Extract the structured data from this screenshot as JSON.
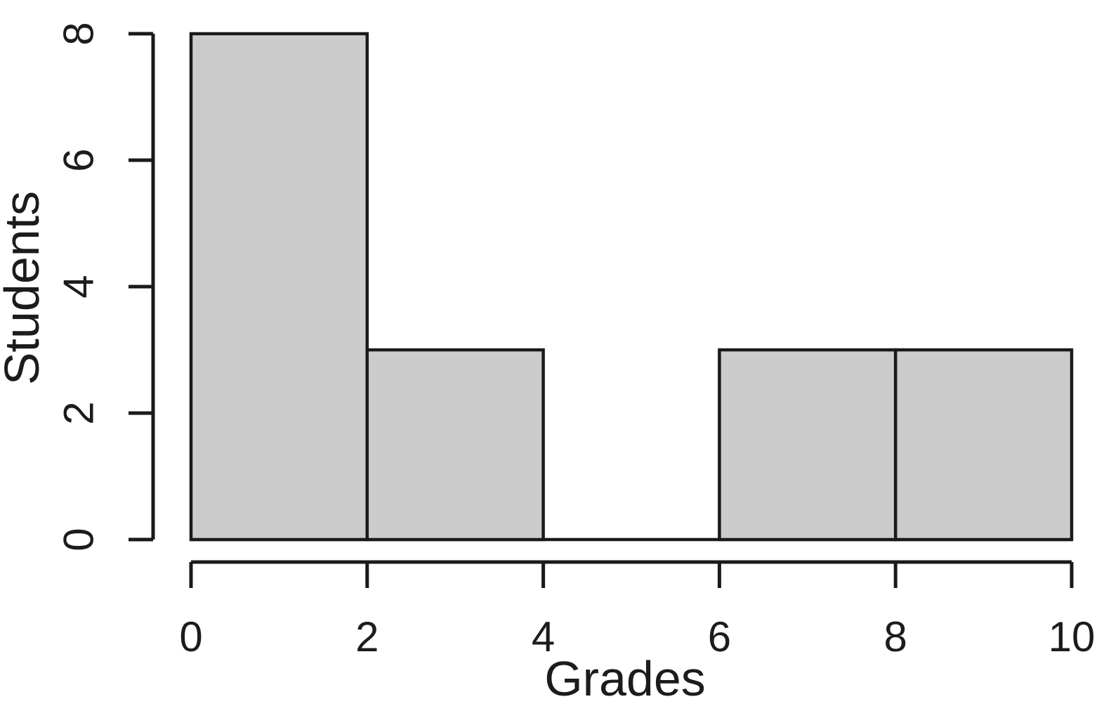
{
  "chart_data": {
    "type": "bar",
    "subtype": "histogram",
    "title": "",
    "xlabel": "Grades",
    "ylabel": "Students",
    "categories": [
      "0-2",
      "2-4",
      "4-6",
      "6-8",
      "8-10"
    ],
    "bin_edges": [
      0,
      2,
      4,
      6,
      8,
      10
    ],
    "values": [
      8,
      3,
      0,
      3,
      3
    ],
    "x_ticks": [
      0,
      2,
      4,
      6,
      8,
      10
    ],
    "y_ticks": [
      0,
      2,
      4,
      6,
      8
    ],
    "xlim": [
      0,
      10
    ],
    "ylim": [
      0,
      8
    ],
    "grid": false,
    "legend": "none",
    "colors": {
      "bar_fill": "#cccccc",
      "bar_border": "#1a1a1a",
      "axis": "#1a1a1a",
      "text": "#1c1c1c"
    }
  }
}
